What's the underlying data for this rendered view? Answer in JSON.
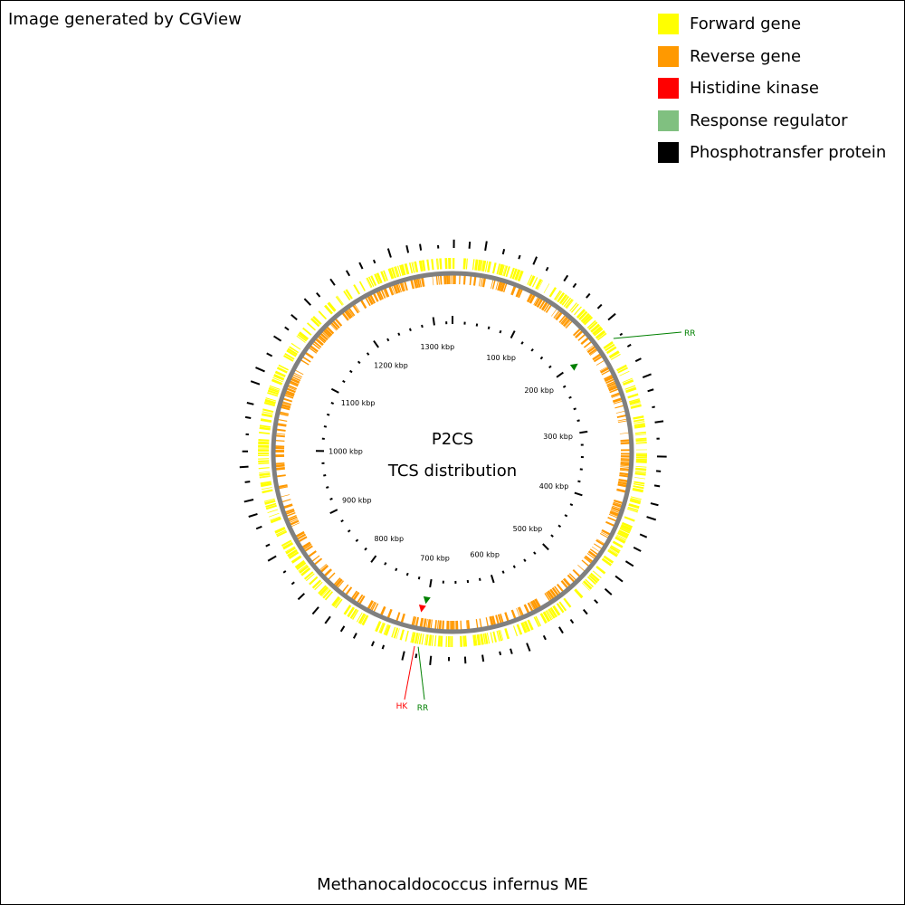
{
  "credit": "Image generated by CGView",
  "legend": [
    {
      "label": "Forward gene",
      "color": "#ffff00"
    },
    {
      "label": "Reverse gene",
      "color": "#ff9900"
    },
    {
      "label": "Histidine kinase",
      "color": "#ff0000"
    },
    {
      "label": "Response regulator",
      "color": "#80c080"
    },
    {
      "label": "Phosphotransfer protein",
      "color": "#000000"
    }
  ],
  "center": {
    "line1": "P2CS",
    "line2": "TCS distribution"
  },
  "genome_name": "Methanocaldococcus infernus ME",
  "genome_length_kbp": 1330,
  "ticks": {
    "major_interval_kbp": 100,
    "minor_interval_kbp": 20,
    "unit": "kbp",
    "labels": [
      "100 kbp",
      "200 kbp",
      "300 kbp",
      "400 kbp",
      "500 kbp",
      "600 kbp",
      "700 kbp",
      "800 kbp",
      "900 kbp",
      "1000 kbp",
      "1100 kbp",
      "1200 kbp",
      "1300 kbp"
    ]
  },
  "features": [
    {
      "type": "RR",
      "label": "RR",
      "position_kbp": 202,
      "color": "#008000"
    },
    {
      "type": "HK",
      "label": "HK",
      "position_kbp": 706,
      "color": "#ff0000"
    },
    {
      "type": "RR",
      "label": "RR",
      "position_kbp": 702,
      "color": "#008000"
    }
  ],
  "colors": {
    "forward": "#ffff00",
    "reverse": "#ff9900",
    "backbone": "#808080",
    "hk": "#ff0000",
    "rr": "#008000"
  }
}
